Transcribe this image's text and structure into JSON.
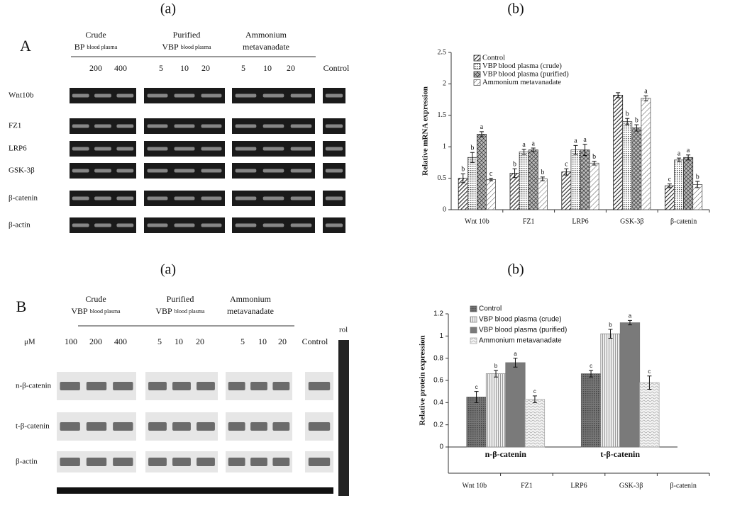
{
  "figure": {
    "panel_labels": [
      "(a)",
      "(b)",
      "(a)",
      "(b)"
    ],
    "gel_A": {
      "letter": "A",
      "groups": [
        {
          "lines": [
            "Crude"
          ],
          "sub_main": "BP",
          "sub_small": "blood plasma"
        },
        {
          "lines": [
            "Purified"
          ],
          "sub_main": "VBP",
          "sub_small": "blood plasma"
        },
        {
          "lines": [
            "Ammonium",
            "metavanadate"
          ]
        }
      ],
      "concentrations": [
        "200",
        "400",
        "5",
        "10",
        "20",
        "5",
        "10",
        "20",
        "Control"
      ],
      "rows": [
        "Wnt10b",
        "FZ1",
        "LRP6",
        "GSK-3β",
        "β-catenin",
        "β-actin"
      ]
    },
    "gel_B": {
      "letter": "B",
      "groups": [
        {
          "lines": [
            "Crude"
          ],
          "sub_main": "VBP",
          "sub_small": "blood plasma"
        },
        {
          "lines": [
            "Purified"
          ],
          "sub_main": "VBP",
          "sub_small": "blood plasma"
        },
        {
          "lines": [
            "Ammonium",
            "metavanadate"
          ]
        }
      ],
      "unit": "μM",
      "concentrations": [
        "100",
        "200",
        "400",
        "5",
        "10",
        "20",
        "5",
        "10",
        "20",
        "Control"
      ],
      "edge_label": "rol",
      "rows": [
        "n-β-catenin",
        "t-β-catenin",
        "β-actin"
      ]
    }
  },
  "chart_data": [
    {
      "type": "bar",
      "ylabel": "Relative mRNA expression",
      "categories": [
        "Wnt 10b",
        "FZ1",
        "LRP6",
        "GSK-3β",
        "β-catenin"
      ],
      "series": [
        {
          "name": "Control",
          "color": "#222222",
          "pattern": "hatch-dense",
          "values": [
            0.5,
            0.58,
            0.6,
            1.82,
            0.38
          ],
          "errors": [
            0.07,
            0.07,
            0.05,
            0.04,
            0.03
          ],
          "letters": [
            "b",
            "b",
            "c",
            null,
            "c"
          ]
        },
        {
          "name": "VBP blood plasma (crude)",
          "color": "#444444",
          "pattern": "dots",
          "values": [
            0.83,
            0.92,
            0.95,
            1.4,
            0.79
          ],
          "errors": [
            0.08,
            0.04,
            0.07,
            0.05,
            0.03
          ],
          "letters": [
            "b",
            "a",
            "a",
            "b",
            "a"
          ]
        },
        {
          "name": "VBP blood plasma (purified)",
          "color": "#333333",
          "pattern": "cross",
          "values": [
            1.2,
            0.95,
            0.95,
            1.3,
            0.83
          ],
          "errors": [
            0.04,
            0.03,
            0.09,
            0.05,
            0.04
          ],
          "letters": [
            "a",
            "a",
            "a",
            "b",
            "a"
          ]
        },
        {
          "name": "Ammonium metavanadate",
          "color": "#555555",
          "pattern": "hatch-light",
          "values": [
            0.48,
            0.49,
            0.74,
            1.77,
            0.4
          ],
          "errors": [
            0.02,
            0.03,
            0.03,
            0.04,
            0.05
          ],
          "letters": [
            "c",
            "b",
            "b",
            "a",
            "b"
          ]
        }
      ],
      "ylim": [
        0,
        2.5
      ],
      "yticks": [
        0,
        0.5,
        1,
        1.5,
        2,
        2.5
      ],
      "legend": "top-left"
    },
    {
      "type": "bar",
      "ylabel": "Relative protein expression",
      "categories": [
        "n-β-catenin",
        "t-β-catenin"
      ],
      "series": [
        {
          "name": "Control",
          "color": "#666666",
          "pattern": "dots-dark",
          "values": [
            0.45,
            0.66
          ],
          "errors": [
            0.05,
            0.03
          ],
          "letters": [
            "c",
            "c"
          ]
        },
        {
          "name": "VBP blood plasma (crude)",
          "color": "#888888",
          "pattern": "vlines",
          "values": [
            0.66,
            1.02
          ],
          "errors": [
            0.03,
            0.04
          ],
          "letters": [
            "b",
            "b"
          ]
        },
        {
          "name": "VBP blood plasma (purified)",
          "color": "#777777",
          "pattern": "solid-gray",
          "values": [
            0.76,
            1.12
          ],
          "errors": [
            0.04,
            0.02
          ],
          "letters": [
            "a",
            "a"
          ]
        },
        {
          "name": "Ammonium metavanadate",
          "color": "#aaaaaa",
          "pattern": "waves",
          "values": [
            0.43,
            0.58
          ],
          "errors": [
            0.03,
            0.06
          ],
          "letters": [
            "c",
            "c"
          ]
        }
      ],
      "ylim": [
        0,
        1.2
      ],
      "yticks": [
        0,
        0.2,
        0.4,
        0.6,
        0.8,
        1,
        1.2
      ],
      "legend": "top-left",
      "lower_axis_labels": [
        "Wnt 10b",
        "FZ1",
        "LRP6",
        "GSK-3β",
        "β-catenin"
      ]
    }
  ]
}
